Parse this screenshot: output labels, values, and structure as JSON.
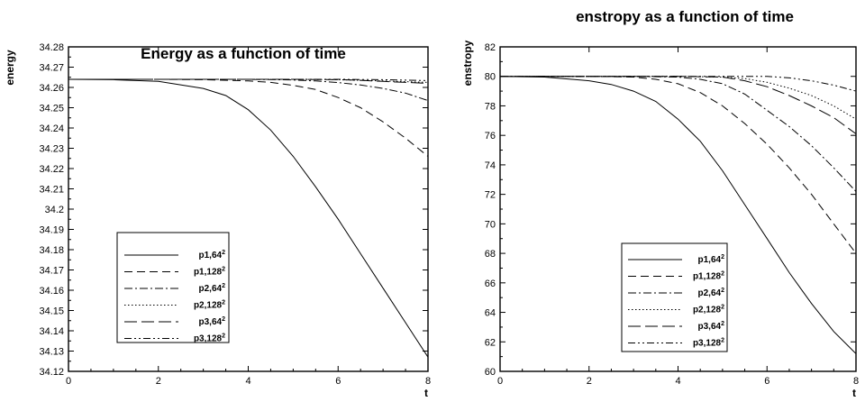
{
  "chart_data": [
    {
      "type": "line",
      "title": "Energy as a function of time",
      "xlabel": "t",
      "ylabel": "energy",
      "xlim": [
        0,
        8
      ],
      "ylim": [
        34.12,
        34.28
      ],
      "xticks": [
        "0",
        "2",
        "4",
        "6",
        "8"
      ],
      "yticks": [
        "34.12",
        "34.13",
        "34.14",
        "34.15",
        "34.16",
        "34.17",
        "34.18",
        "34.19",
        "34.2",
        "34.21",
        "34.22",
        "34.23",
        "34.24",
        "34.25",
        "34.26",
        "34.27",
        "34.28"
      ],
      "legend": "lower-left",
      "series": [
        {
          "name": "p1,64",
          "sup": "2",
          "x": [
            0,
            1,
            2,
            3,
            3.5,
            4,
            4.5,
            5,
            5.5,
            6,
            6.5,
            7,
            7.5,
            8
          ],
          "values": [
            34.264,
            34.2638,
            34.263,
            34.2595,
            34.256,
            34.249,
            34.239,
            34.226,
            34.211,
            34.195,
            34.178,
            34.161,
            34.144,
            34.127
          ]
        },
        {
          "name": "p1,128",
          "sup": "2",
          "x": [
            0,
            2,
            3,
            4,
            4.5,
            5,
            5.5,
            6,
            6.5,
            7,
            7.5,
            8
          ],
          "values": [
            34.264,
            34.264,
            34.2638,
            34.2632,
            34.2625,
            34.261,
            34.259,
            34.255,
            34.25,
            34.243,
            34.235,
            34.226
          ]
        },
        {
          "name": "p2,64",
          "sup": "2",
          "x": [
            0,
            3,
            4,
            5,
            5.5,
            6,
            6.5,
            7,
            7.5,
            8
          ],
          "values": [
            34.264,
            34.264,
            34.264,
            34.2637,
            34.2632,
            34.2624,
            34.2612,
            34.2595,
            34.2572,
            34.2535
          ]
        },
        {
          "name": "p2,128",
          "sup": "2",
          "x": [
            0,
            4,
            5,
            6,
            7,
            8
          ],
          "values": [
            34.264,
            34.264,
            34.264,
            34.2638,
            34.2632,
            34.2625
          ]
        },
        {
          "name": "p3,64",
          "sup": "2",
          "x": [
            0,
            4,
            5,
            6,
            6.5,
            7,
            7.5,
            8
          ],
          "values": [
            34.264,
            34.264,
            34.264,
            34.2638,
            34.2635,
            34.263,
            34.2625,
            34.262
          ]
        },
        {
          "name": "p3,128",
          "sup": "2",
          "x": [
            0,
            5,
            6,
            7,
            8
          ],
          "values": [
            34.264,
            34.264,
            34.264,
            34.2638,
            34.2634
          ]
        }
      ]
    },
    {
      "type": "line",
      "title": "enstropy as a function of time",
      "xlabel": "t",
      "ylabel": "enstropy",
      "xlim": [
        0,
        8
      ],
      "ylim": [
        60,
        82
      ],
      "xticks": [
        "0",
        "2",
        "4",
        "6",
        "8"
      ],
      "yticks": [
        "60",
        "62",
        "64",
        "66",
        "68",
        "70",
        "72",
        "74",
        "76",
        "78",
        "80",
        "82"
      ],
      "legend": "lower-center",
      "series": [
        {
          "name": "p1,64",
          "sup": "2",
          "x": [
            0,
            1,
            2,
            2.5,
            3,
            3.5,
            4,
            4.5,
            5,
            5.5,
            6,
            6.5,
            7,
            7.5,
            8
          ],
          "values": [
            80,
            79.95,
            79.7,
            79.45,
            79,
            78.3,
            77.1,
            75.6,
            73.6,
            71.3,
            69,
            66.7,
            64.6,
            62.7,
            61.2
          ]
        },
        {
          "name": "p1,128",
          "sup": "2",
          "x": [
            0,
            2,
            3,
            3.5,
            4,
            4.5,
            5,
            5.5,
            6,
            6.5,
            7,
            7.5,
            8
          ],
          "values": [
            80,
            80,
            79.95,
            79.8,
            79.5,
            78.9,
            78,
            76.8,
            75.4,
            73.8,
            72,
            70,
            68
          ]
        },
        {
          "name": "p2,64",
          "sup": "2",
          "x": [
            0,
            3,
            4,
            4.5,
            5,
            5.5,
            6,
            6.5,
            7,
            7.5,
            8
          ],
          "values": [
            80,
            80,
            79.95,
            79.8,
            79.5,
            78.8,
            77.7,
            76.6,
            75.3,
            73.8,
            72.2
          ]
        },
        {
          "name": "p2,128",
          "sup": "2",
          "x": [
            0,
            4,
            5,
            5.5,
            6,
            6.5,
            7,
            7.5,
            8
          ],
          "values": [
            80,
            80,
            79.95,
            79.85,
            79.6,
            79.2,
            78.7,
            78,
            77.1
          ]
        },
        {
          "name": "p3,64",
          "sup": "2",
          "x": [
            0,
            4,
            5,
            5.5,
            6,
            6.5,
            7,
            7.5,
            8
          ],
          "values": [
            80,
            80,
            79.95,
            79.7,
            79.3,
            78.7,
            78,
            77.2,
            76.1
          ]
        },
        {
          "name": "p3,128",
          "sup": "2",
          "x": [
            0,
            5,
            6,
            6.5,
            7,
            7.5,
            8
          ],
          "values": [
            80,
            80,
            80,
            79.9,
            79.7,
            79.4,
            79
          ]
        }
      ]
    }
  ]
}
